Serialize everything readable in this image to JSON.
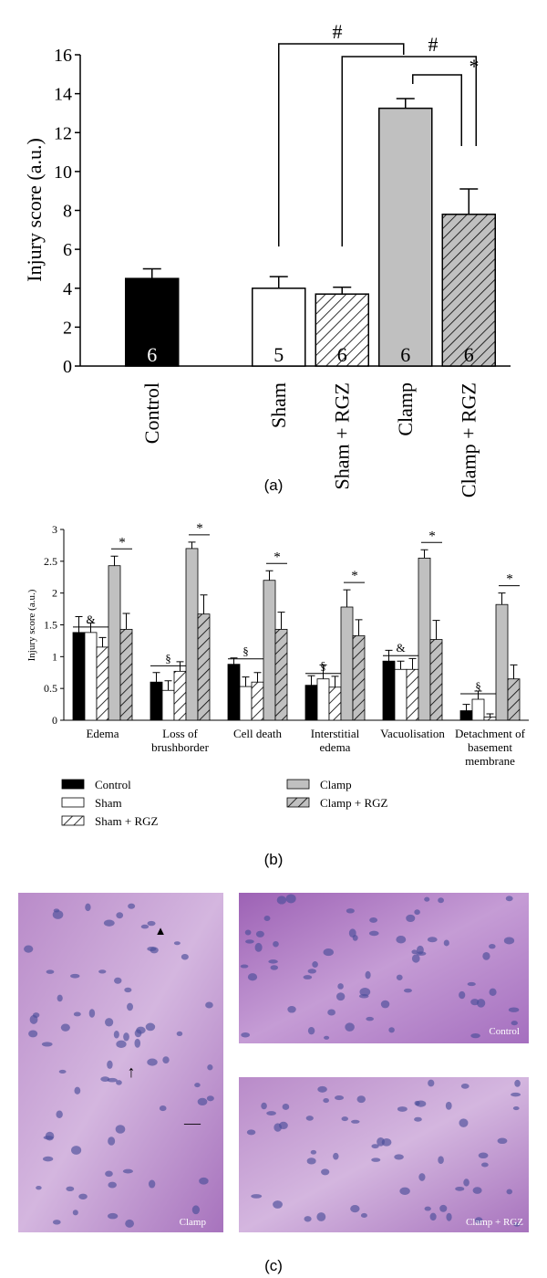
{
  "chart_data": [
    {
      "type": "bar",
      "panel_label": "(a)",
      "y_label": "Injury score (a.u.)",
      "categories": [
        "Control",
        null,
        "Sham",
        "Sham + RGZ",
        "Clamp",
        "Clamp + RGZ"
      ],
      "values": [
        4.5,
        null,
        4.0,
        3.7,
        13.25,
        7.8
      ],
      "errors": [
        0.5,
        null,
        0.6,
        0.35,
        0.5,
        1.3
      ],
      "n_labels": [
        6,
        null,
        5,
        6,
        6,
        6
      ],
      "colors": [
        "#000000",
        null,
        "#ffffff",
        "#ffffff",
        "#c0c0c0",
        "#c0c0c0"
      ],
      "hatch": [
        false,
        null,
        false,
        true,
        false,
        true
      ],
      "ylim": [
        0,
        16
      ],
      "yticks": [
        0,
        2,
        4,
        6,
        8,
        10,
        12,
        14,
        16
      ],
      "significance": [
        {
          "label": "#",
          "between": [
            "Sham",
            "Clamp"
          ]
        },
        {
          "label": "#",
          "between": [
            "Sham + RGZ",
            "Clamp + RGZ"
          ]
        },
        {
          "label": "*",
          "between": [
            "Clamp",
            "Clamp + RGZ"
          ]
        }
      ]
    },
    {
      "type": "grouped_bar",
      "panel_label": "(b)",
      "y_label": "Injury score (a.u.)",
      "categories": [
        "Edema",
        "Loss of brushborder",
        "Cell death",
        "Interstitial edema",
        "Vacuolisation",
        "Detachment of basement membrane"
      ],
      "series": [
        {
          "name": "Control",
          "color": "#000000",
          "hatch": false,
          "values": [
            1.38,
            0.6,
            0.88,
            0.55,
            0.93,
            0.15
          ],
          "errors": [
            0.25,
            0.15,
            0.1,
            0.15,
            0.17,
            0.1
          ]
        },
        {
          "name": "Sham",
          "color": "#ffffff",
          "hatch": false,
          "values": [
            1.38,
            0.47,
            0.53,
            0.65,
            0.8,
            0.33
          ],
          "errors": [
            0.15,
            0.15,
            0.15,
            0.22,
            0.13,
            0.13
          ]
        },
        {
          "name": "Sham + RGZ",
          "color": "#ffffff",
          "hatch": true,
          "values": [
            1.15,
            0.77,
            0.6,
            0.52,
            0.8,
            0.05
          ],
          "errors": [
            0.15,
            0.15,
            0.15,
            0.17,
            0.17,
            0.05
          ]
        },
        {
          "name": "Clamp",
          "color": "#c0c0c0",
          "hatch": false,
          "values": [
            2.43,
            2.7,
            2.2,
            1.78,
            2.55,
            1.82
          ],
          "errors": [
            0.15,
            0.1,
            0.15,
            0.27,
            0.13,
            0.18
          ]
        },
        {
          "name": "Clamp + RGZ",
          "color": "#c0c0c0",
          "hatch": true,
          "values": [
            1.43,
            1.67,
            1.43,
            1.33,
            1.27,
            0.65
          ],
          "errors": [
            0.25,
            0.3,
            0.27,
            0.25,
            0.3,
            0.22
          ]
        }
      ],
      "group_marks": [
        "&",
        "§",
        "§",
        "§",
        "&",
        "§"
      ],
      "pair_marks": [
        "*",
        "*",
        "*",
        "*",
        "*",
        "*"
      ],
      "ylim": [
        0,
        3
      ],
      "yticks": [
        0,
        0.5,
        1,
        1.5,
        2,
        2.5,
        3
      ]
    }
  ],
  "figure_c": {
    "panel_label": "(c)",
    "images": [
      {
        "caption": "Clamp",
        "markers": [
          "▲",
          "↑",
          "—"
        ]
      },
      {
        "caption": "Control"
      },
      {
        "caption": "Clamp + RGZ"
      }
    ]
  }
}
